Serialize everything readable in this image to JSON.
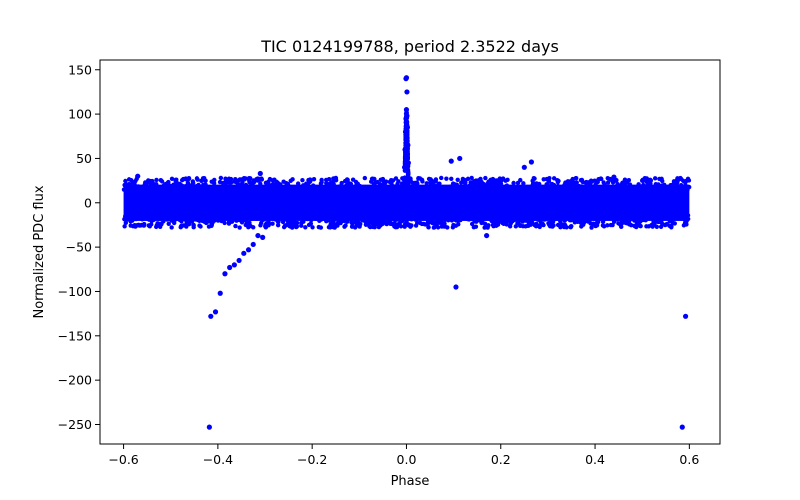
{
  "chart_data": {
    "type": "scatter",
    "title": "TIC 0124199788, period 2.3522 days",
    "xlabel": "Phase",
    "ylabel": "Normalized PDC flux",
    "xlim": [
      -0.65,
      0.665
    ],
    "ylim": [
      -272,
      161
    ],
    "xticks": [
      -0.6,
      -0.4,
      -0.2,
      0.0,
      0.2,
      0.4,
      0.6
    ],
    "xtick_labels": [
      "−0.6",
      "−0.4",
      "−0.2",
      "0.0",
      "0.2",
      "0.4",
      "0.6"
    ],
    "yticks": [
      150,
      100,
      50,
      0,
      -50,
      -100,
      -150,
      -200,
      -250
    ],
    "ytick_labels": [
      "150",
      "100",
      "50",
      "0",
      "−50",
      "−100",
      "−150",
      "−200",
      "−250"
    ],
    "grid": false,
    "marker_color": "#0000ff",
    "series": [
      {
        "name": "baseline band",
        "x_range": [
          -0.6,
          0.6
        ],
        "y_range": [
          -25,
          25
        ],
        "description": "dense scatter of points between about -25 and 25 across phase -0.6 to 0.6"
      },
      {
        "name": "transit peak",
        "x": [
          -0.004,
          -0.003,
          -0.002,
          -0.001,
          0.0,
          0.001,
          0.002,
          0.003,
          0.004,
          0.001,
          -0.001,
          0.0
        ],
        "y": [
          40,
          60,
          80,
          95,
          105,
          98,
          85,
          65,
          45,
          125,
          140,
          141
        ]
      },
      {
        "name": "outliers",
        "x": [
          -0.415,
          -0.405,
          -0.395,
          -0.385,
          -0.375,
          -0.365,
          -0.355,
          -0.345,
          -0.335,
          -0.325,
          -0.315,
          -0.305,
          -0.418,
          0.585,
          0.592,
          0.105,
          0.095,
          0.113,
          0.25,
          0.265,
          0.17,
          -0.57,
          -0.31,
          0.44,
          0.005,
          -0.02
        ],
        "y": [
          -128,
          -123,
          -102,
          -80,
          -73,
          -70,
          -65,
          -57,
          -53,
          -47,
          -37,
          -39,
          -253,
          -253,
          -128,
          -95,
          47,
          50,
          40,
          46,
          -37,
          30,
          33,
          29,
          -25,
          -25
        ]
      }
    ]
  }
}
